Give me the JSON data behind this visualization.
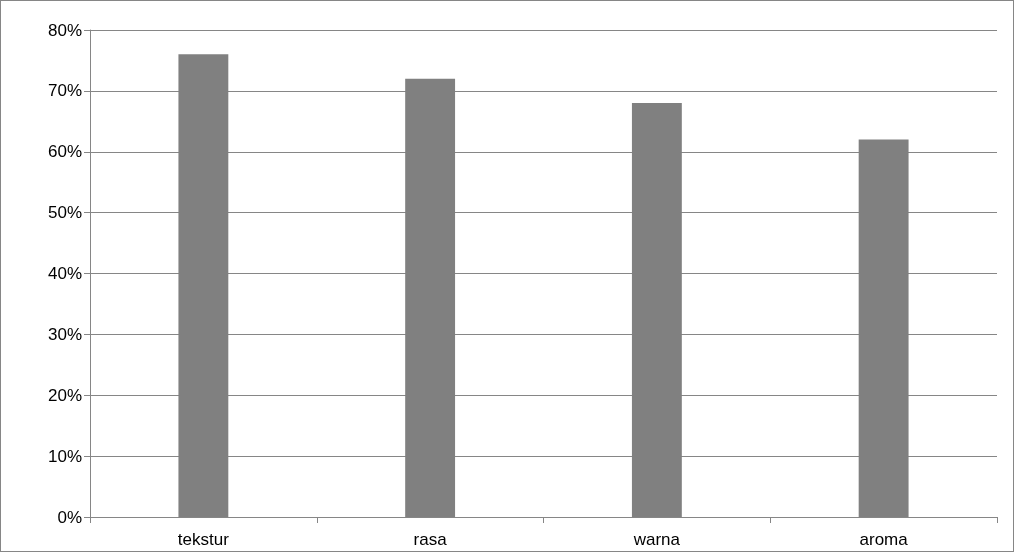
{
  "chart_data": {
    "type": "bar",
    "categories": [
      "tekstur",
      "rasa",
      "warna",
      "aroma"
    ],
    "values": [
      76,
      72,
      68,
      62
    ],
    "color": "#808080",
    "ylim": [
      0,
      80
    ],
    "yticks": [
      {
        "value": 0,
        "label": "0%"
      },
      {
        "value": 10,
        "label": "10%"
      },
      {
        "value": 20,
        "label": "20%"
      },
      {
        "value": 30,
        "label": "30%"
      },
      {
        "value": 40,
        "label": "40%"
      },
      {
        "value": 50,
        "label": "50%"
      },
      {
        "value": 60,
        "label": "60%"
      },
      {
        "value": 70,
        "label": "70%"
      },
      {
        "value": 80,
        "label": "80%"
      }
    ],
    "grid": "y"
  }
}
